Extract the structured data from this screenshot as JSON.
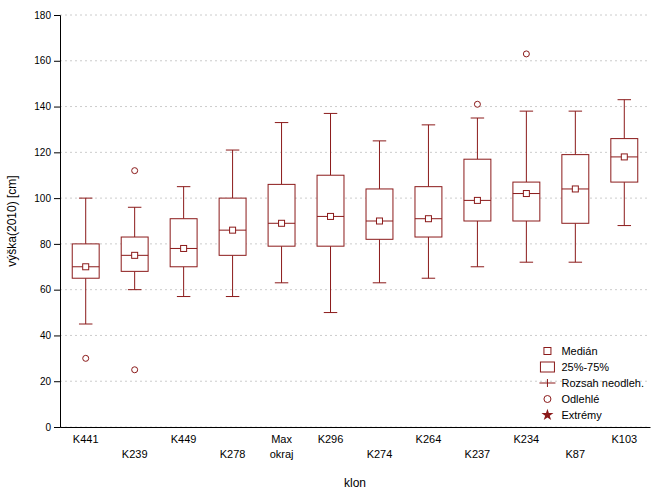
{
  "chart_data": {
    "type": "box",
    "xlabel": "klon",
    "ylabel": "výška(2010) [cm]",
    "categories": [
      [
        "K441",
        null
      ],
      [
        null,
        "K239"
      ],
      [
        "K449",
        null
      ],
      [
        null,
        "K278"
      ],
      [
        "Max",
        "okraj"
      ],
      [
        "K296",
        null
      ],
      [
        null,
        "K274"
      ],
      [
        "K264",
        null
      ],
      [
        null,
        "K237"
      ],
      [
        "K234",
        null
      ],
      [
        null,
        "K87"
      ],
      [
        "K103",
        null
      ]
    ],
    "boxes": [
      {
        "median": 70,
        "q1": 65,
        "q3": 80,
        "whislo": 45,
        "whishi": 100,
        "fliers": [
          30
        ]
      },
      {
        "median": 75,
        "q1": 68,
        "q3": 83,
        "whislo": 60,
        "whishi": 96,
        "fliers": [
          25,
          112
        ]
      },
      {
        "median": 78,
        "q1": 70,
        "q3": 91,
        "whislo": 57,
        "whishi": 105,
        "fliers": []
      },
      {
        "median": 86,
        "q1": 75,
        "q3": 100,
        "whislo": 57,
        "whishi": 121,
        "fliers": []
      },
      {
        "median": 89,
        "q1": 79,
        "q3": 106,
        "whislo": 63,
        "whishi": 133,
        "fliers": []
      },
      {
        "median": 92,
        "q1": 79,
        "q3": 110,
        "whislo": 50,
        "whishi": 137,
        "fliers": []
      },
      {
        "median": 90,
        "q1": 82,
        "q3": 104,
        "whislo": 63,
        "whishi": 125,
        "fliers": []
      },
      {
        "median": 91,
        "q1": 83,
        "q3": 105,
        "whislo": 65,
        "whishi": 132,
        "fliers": []
      },
      {
        "median": 99,
        "q1": 90,
        "q3": 117,
        "whislo": 70,
        "whishi": 135,
        "fliers": [
          141
        ]
      },
      {
        "median": 102,
        "q1": 90,
        "q3": 107,
        "whislo": 72,
        "whishi": 138,
        "fliers": [
          163
        ]
      },
      {
        "median": 104,
        "q1": 89,
        "q3": 119,
        "whislo": 72,
        "whishi": 138,
        "fliers": []
      },
      {
        "median": 118,
        "q1": 107,
        "q3": 126,
        "whislo": 88,
        "whishi": 143,
        "fliers": []
      }
    ],
    "color": "#8B1A1A",
    "ylim": [
      0,
      180
    ],
    "yticks": [
      0,
      20,
      40,
      60,
      80,
      100,
      120,
      140,
      160,
      180
    ],
    "grid": true,
    "legend": "lower right",
    "legend_entries": [
      {
        "name": "Medián",
        "marker": "square"
      },
      {
        "name": "25%-75%",
        "marker": "box"
      },
      {
        "name": "Rozsah neodleh.",
        "marker": "whisker"
      },
      {
        "name": "Odlehlé",
        "marker": "circle"
      },
      {
        "name": "Extrémy",
        "marker": "star"
      }
    ]
  }
}
